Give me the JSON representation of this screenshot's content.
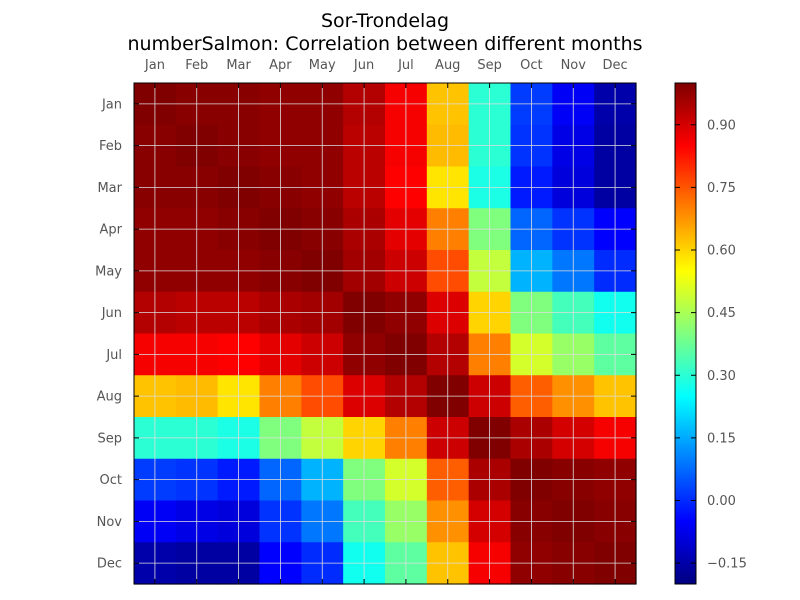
{
  "title_line1": "Sor-Trondelag",
  "title_line2": "numberSalmon: Correlation between different months",
  "chart_data": {
    "type": "heatmap",
    "title": "Sor-Trondelag",
    "subtitle": "numberSalmon: Correlation between different months",
    "x_labels": [
      "Jan",
      "Feb",
      "Mar",
      "Apr",
      "May",
      "Jun",
      "Jul",
      "Aug",
      "Sep",
      "Oct",
      "Nov",
      "Dec"
    ],
    "y_labels": [
      "Jan",
      "Feb",
      "Mar",
      "Apr",
      "May",
      "Jun",
      "Jul",
      "Aug",
      "Sep",
      "Oct",
      "Nov",
      "Dec"
    ],
    "values": [
      [
        1.0,
        0.99,
        0.99,
        0.98,
        0.98,
        0.94,
        0.86,
        0.62,
        0.3,
        0.02,
        -0.06,
        -0.15
      ],
      [
        0.99,
        1.0,
        0.99,
        0.98,
        0.98,
        0.93,
        0.86,
        0.63,
        0.3,
        0.01,
        -0.08,
        -0.16
      ],
      [
        0.99,
        0.99,
        1.0,
        0.99,
        0.98,
        0.93,
        0.85,
        0.58,
        0.28,
        -0.02,
        -0.09,
        -0.16
      ],
      [
        0.98,
        0.98,
        0.99,
        1.0,
        0.99,
        0.95,
        0.88,
        0.7,
        0.4,
        0.07,
        0.01,
        -0.05
      ],
      [
        0.98,
        0.98,
        0.98,
        0.99,
        1.0,
        0.96,
        0.91,
        0.76,
        0.48,
        0.16,
        0.09,
        0.0
      ],
      [
        0.94,
        0.93,
        0.93,
        0.95,
        0.96,
        1.0,
        0.98,
        0.89,
        0.6,
        0.4,
        0.33,
        0.27
      ],
      [
        0.86,
        0.86,
        0.85,
        0.88,
        0.91,
        0.98,
        1.0,
        0.94,
        0.7,
        0.5,
        0.43,
        0.36
      ],
      [
        0.62,
        0.63,
        0.58,
        0.7,
        0.76,
        0.89,
        0.94,
        1.0,
        0.91,
        0.74,
        0.68,
        0.62
      ],
      [
        0.3,
        0.3,
        0.28,
        0.4,
        0.48,
        0.6,
        0.7,
        0.91,
        1.0,
        0.95,
        0.9,
        0.86
      ],
      [
        0.02,
        0.01,
        -0.02,
        0.07,
        0.16,
        0.4,
        0.5,
        0.74,
        0.95,
        1.0,
        0.99,
        0.98
      ],
      [
        -0.06,
        -0.08,
        -0.09,
        0.01,
        0.09,
        0.33,
        0.43,
        0.68,
        0.9,
        0.99,
        1.0,
        0.99
      ],
      [
        -0.15,
        -0.16,
        -0.16,
        -0.05,
        0.0,
        0.27,
        0.36,
        0.62,
        0.86,
        0.98,
        0.99,
        1.0
      ]
    ],
    "vmin": -0.2,
    "vmax": 1.0,
    "colormap": "jet",
    "grid": true,
    "colorbar": {
      "location": "right",
      "ticks": [
        0.9,
        0.75,
        0.6,
        0.45,
        0.3,
        0.15,
        0.0,
        -0.15
      ],
      "tick_labels": [
        "0.90",
        "0.75",
        "0.60",
        "0.45",
        "0.30",
        "0.15",
        "0.00",
        "−0.15"
      ]
    }
  }
}
